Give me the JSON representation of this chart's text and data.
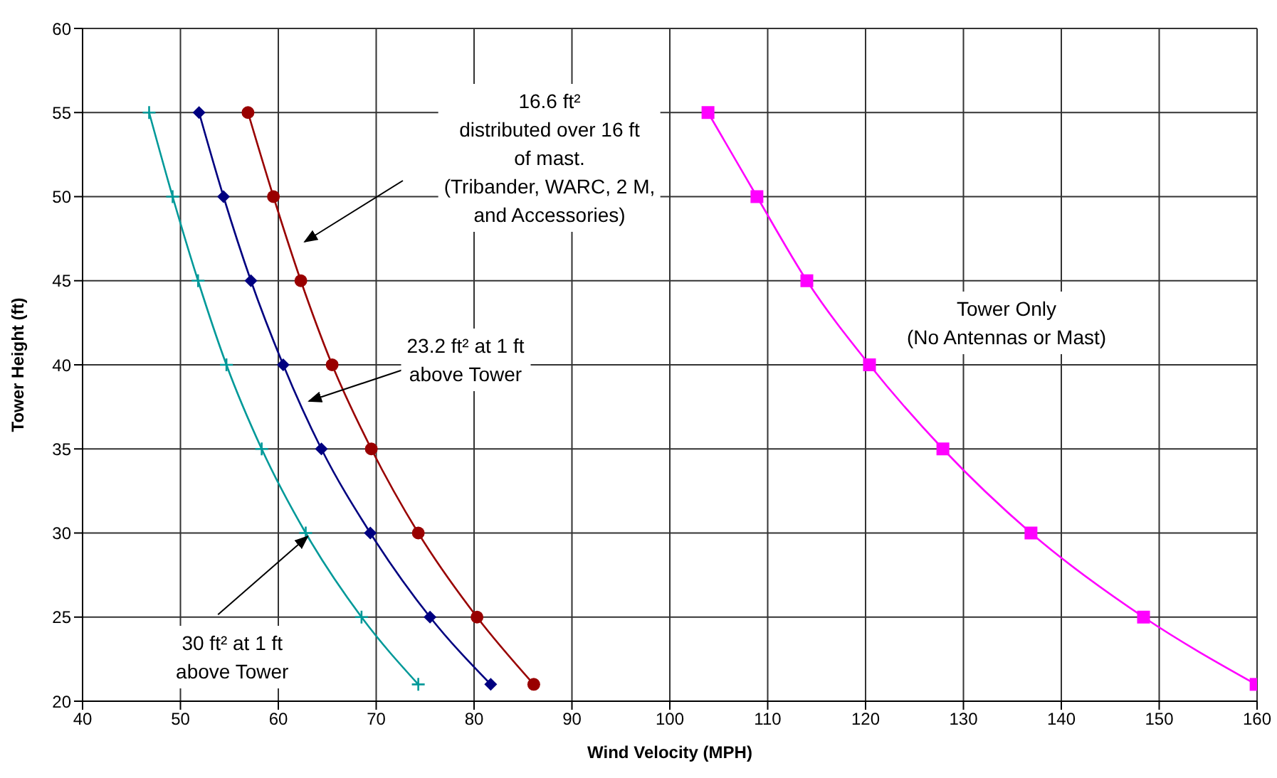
{
  "chart_data": {
    "type": "line",
    "xlabel": "Wind Velocity (MPH)",
    "ylabel": "Tower Height (ft)",
    "xlim": [
      40,
      160
    ],
    "xticks": [
      40,
      50,
      60,
      70,
      80,
      90,
      100,
      110,
      120,
      130,
      140,
      150,
      160
    ],
    "ylim": [
      20,
      60
    ],
    "yticks": [
      20,
      25,
      30,
      35,
      40,
      45,
      50,
      55,
      60
    ],
    "grid": true,
    "legend": false,
    "line_style": "solid",
    "annotations": [
      "16.6 ft²\ndistributed over 16 ft\nof mast.\n(Tribander, WARC, 2 M,\nand Accessories)",
      "23.2 ft² at 1 ft\nabove Tower",
      {
        "text": "30 ft² at 1 ft\nabove Tower",
        "x": 63.0,
        "y": 29.8
      }
    ],
    "series": [
      {
        "color": "#990000",
        "marker": "circle",
        "x": [
          56.9,
          59.5,
          62.3,
          65.5,
          69.5,
          74.3,
          80.3,
          86.1
        ],
        "values": [
          55,
          50,
          45,
          40,
          35,
          30,
          25,
          21
        ]
      },
      {
        "color": "#000080",
        "marker": "diamond",
        "x": [
          51.9,
          54.4,
          57.2,
          60.5,
          64.4,
          69.4,
          75.5,
          81.7
        ],
        "values": [
          55,
          50,
          45,
          40,
          35,
          30,
          25,
          21
        ]
      },
      {
        "color": "#009999",
        "marker": "cross",
        "x": [
          46.8,
          49.2,
          51.8,
          54.7,
          58.3,
          62.8,
          68.5,
          74.3
        ],
        "values": [
          55,
          50,
          45,
          40,
          35,
          30,
          25,
          21
        ]
      },
      {
        "name": "Tower Only\n(No Antennas or Mast)",
        "color": "#ff00ff",
        "marker": "square",
        "x": [
          103.9,
          108.9,
          114.0,
          120.4,
          127.9,
          136.9,
          148.4,
          159.9
        ],
        "values": [
          55,
          50,
          45,
          40,
          35,
          30,
          25,
          21
        ]
      }
    ]
  }
}
